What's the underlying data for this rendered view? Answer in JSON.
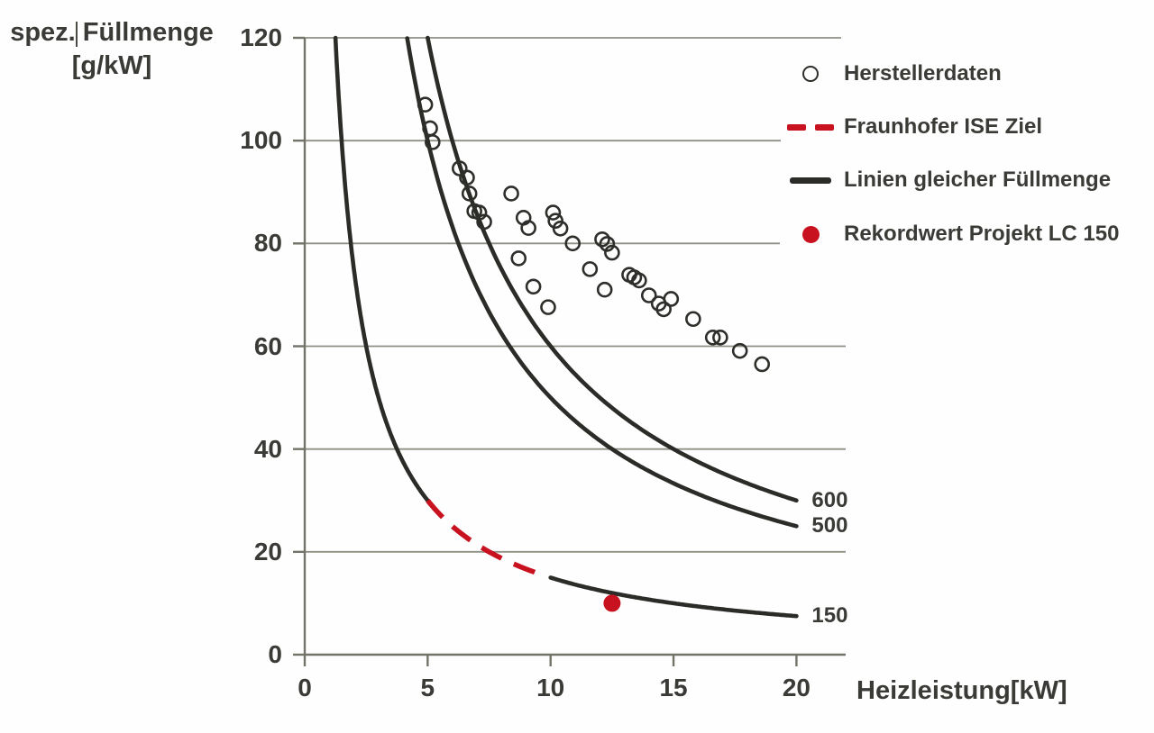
{
  "title_area": {
    "y_axis_title": "spez. Füllmenge",
    "y_axis_unit": "[g/kW]",
    "x_axis_title": "Heizleistung[kW]"
  },
  "legend": {
    "position": "top-right",
    "items": [
      {
        "label": "Herstellerdaten",
        "marker": "open-circle-icon"
      },
      {
        "label": "Fraunhofer ISE Ziel",
        "marker": "red-dashed-line-icon"
      },
      {
        "label": "Linien gleicher Füllmenge",
        "marker": "black-solid-line-icon"
      },
      {
        "label": "Rekordwert Projekt LC 150",
        "marker": "red-filled-dot-icon"
      }
    ]
  },
  "colors": {
    "curve_black": "#2b2b28",
    "target_red": "#c9121f",
    "grid_gray": "#8f8f84",
    "axis_gray": "#73736a",
    "text_dark": "#3a3a36"
  },
  "chart_data": {
    "type": "scatter",
    "title": "",
    "xlabel": "Heizleistung[kW]",
    "ylabel": "spez. Füllmenge [g/kW]",
    "xlim": [
      0,
      22
    ],
    "ylim": [
      0,
      120
    ],
    "x_ticks": [
      0,
      5,
      10,
      15,
      20
    ],
    "y_ticks": [
      0,
      20,
      40,
      60,
      80,
      100,
      120
    ],
    "grid": "horizontal-only",
    "legend_position": "top-right",
    "iso_curve_model": "y = C / x (Linien gleicher Füllmenge, Füllmenge C in g)",
    "curves": [
      {
        "name": "Linien gleicher Füllmenge",
        "constant": 600,
        "style": "solid-black",
        "x_range": [
          5.0,
          20.0
        ],
        "end_label": "600"
      },
      {
        "name": "Linien gleicher Füllmenge",
        "constant": 500,
        "style": "solid-black",
        "x_range": [
          4.17,
          20.0
        ],
        "end_label": "500"
      },
      {
        "name": "Linien gleicher Füllmenge",
        "constant": 150,
        "style": "solid-black",
        "x_range": [
          1.25,
          5.0
        ],
        "end_label": null
      },
      {
        "name": "Fraunhofer ISE Ziel",
        "constant": 150,
        "style": "dashed-red",
        "x_range": [
          5.0,
          9.8
        ],
        "end_label": null
      },
      {
        "name": "Linien gleicher Füllmenge",
        "constant": 150,
        "style": "solid-black",
        "x_range": [
          10.0,
          20.0
        ],
        "end_label": "150"
      }
    ],
    "series": [
      {
        "name": "Herstellerdaten",
        "type": "scatter-open-circles",
        "points": [
          [
            4.9,
            107.0
          ],
          [
            5.1,
            102.4
          ],
          [
            5.2,
            99.7
          ],
          [
            6.3,
            94.6
          ],
          [
            6.6,
            92.8
          ],
          [
            6.7,
            89.7
          ],
          [
            6.9,
            86.3
          ],
          [
            7.1,
            86.0
          ],
          [
            7.3,
            84.2
          ],
          [
            8.4,
            89.7
          ],
          [
            8.7,
            77.1
          ],
          [
            8.9,
            85.0
          ],
          [
            9.1,
            83.0
          ],
          [
            9.3,
            71.6
          ],
          [
            9.9,
            67.6
          ],
          [
            10.1,
            86.0
          ],
          [
            10.2,
            84.4
          ],
          [
            10.4,
            82.9
          ],
          [
            10.9,
            80.0
          ],
          [
            11.6,
            75.0
          ],
          [
            12.1,
            80.8
          ],
          [
            12.3,
            79.9
          ],
          [
            12.5,
            78.2
          ],
          [
            12.2,
            71.0
          ],
          [
            13.2,
            73.9
          ],
          [
            13.4,
            73.4
          ],
          [
            13.6,
            72.8
          ],
          [
            14.0,
            69.9
          ],
          [
            14.4,
            68.3
          ],
          [
            14.6,
            67.2
          ],
          [
            14.9,
            69.2
          ],
          [
            15.8,
            65.3
          ],
          [
            16.6,
            61.7
          ],
          [
            16.9,
            61.7
          ],
          [
            17.7,
            59.1
          ],
          [
            18.6,
            56.5
          ]
        ]
      },
      {
        "name": "Rekordwert Projekt LC 150",
        "type": "filled-red-dot",
        "points": [
          [
            12.5,
            10.0
          ]
        ]
      }
    ]
  }
}
